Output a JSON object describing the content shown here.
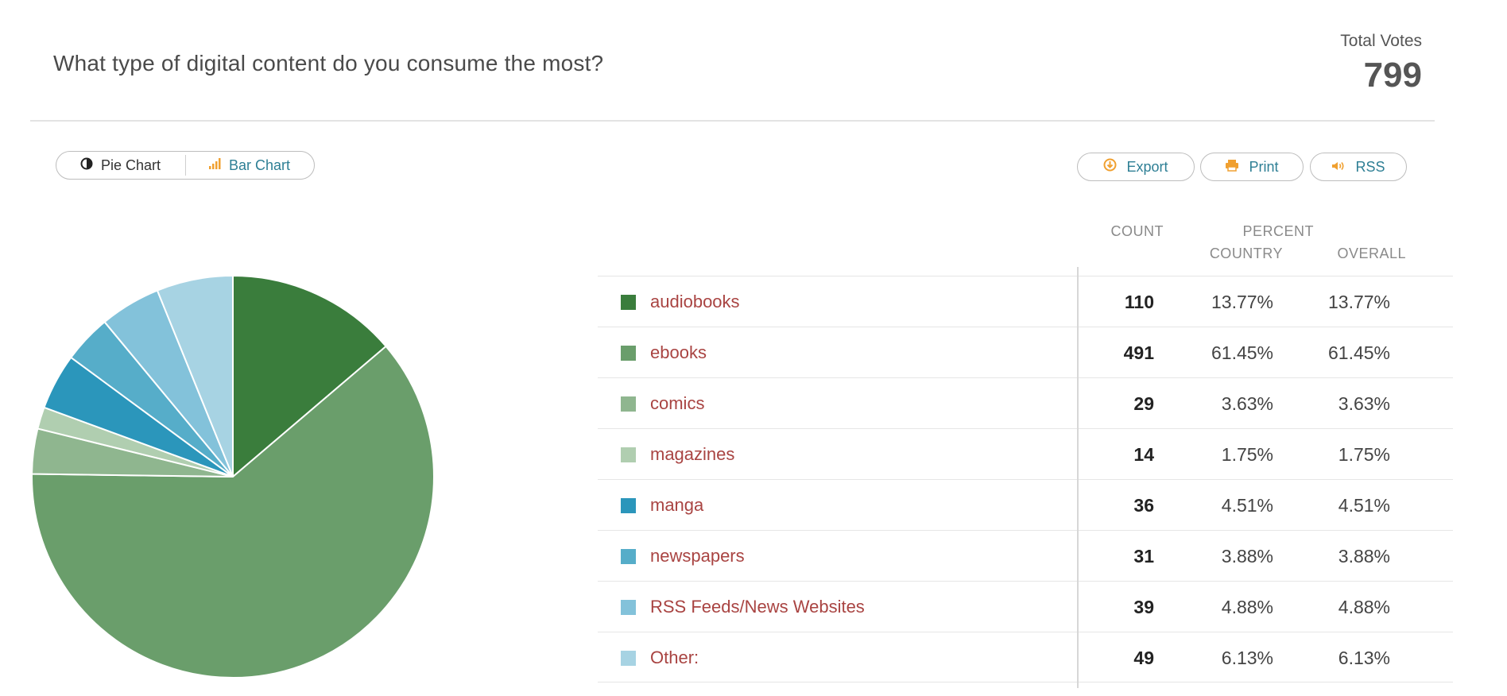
{
  "question": "What type of digital content do you consume the most?",
  "total_votes": {
    "label": "Total Votes",
    "value": "799"
  },
  "view_toggle": {
    "pie_label": "Pie Chart",
    "bar_label": "Bar Chart",
    "active": "pie"
  },
  "actions": {
    "export_label": "Export",
    "print_label": "Print",
    "rss_label": "RSS"
  },
  "icons": {
    "pie": "half-circle-icon",
    "bar": "bar-chart-icon",
    "export": "download-circle-icon",
    "print": "printer-icon",
    "rss": "speaker-icon"
  },
  "colors": {
    "accent": "#f0a030",
    "link": "#2e7f95",
    "label": "#a94442"
  },
  "table": {
    "count_header": "COUNT",
    "percent_header": "PERCENT",
    "country_header": "COUNTRY",
    "overall_header": "OVERALL",
    "rows": [
      {
        "label": "audiobooks",
        "count": "110",
        "country": "13.77%",
        "overall": "13.77%",
        "color": "#3a7d3c"
      },
      {
        "label": "ebooks",
        "count": "491",
        "country": "61.45%",
        "overall": "61.45%",
        "color": "#6a9e6b"
      },
      {
        "label": "comics",
        "count": "29",
        "country": "3.63%",
        "overall": "3.63%",
        "color": "#8fb68f"
      },
      {
        "label": "magazines",
        "count": "14",
        "country": "1.75%",
        "overall": "1.75%",
        "color": "#b0ceb0"
      },
      {
        "label": "manga",
        "count": "36",
        "country": "4.51%",
        "overall": "4.51%",
        "color": "#2b96bb"
      },
      {
        "label": "newspapers",
        "count": "31",
        "country": "3.88%",
        "overall": "3.88%",
        "color": "#56adc9"
      },
      {
        "label": "RSS Feeds/News Websites",
        "count": "39",
        "country": "4.88%",
        "overall": "4.88%",
        "color": "#83c2da"
      },
      {
        "label": "Other:",
        "count": "49",
        "country": "6.13%",
        "overall": "6.13%",
        "color": "#a7d3e3"
      }
    ]
  },
  "chart_data": {
    "type": "pie",
    "categories": [
      "audiobooks",
      "ebooks",
      "comics",
      "magazines",
      "manga",
      "newspapers",
      "RSS Feeds/News Websites",
      "Other:"
    ],
    "values": [
      110,
      491,
      29,
      14,
      36,
      31,
      39,
      49
    ],
    "colors": [
      "#3a7d3c",
      "#6a9e6b",
      "#8fb68f",
      "#b0ceb0",
      "#2b96bb",
      "#56adc9",
      "#83c2da",
      "#a7d3e3"
    ],
    "start": "top",
    "direction": "clockwise"
  }
}
